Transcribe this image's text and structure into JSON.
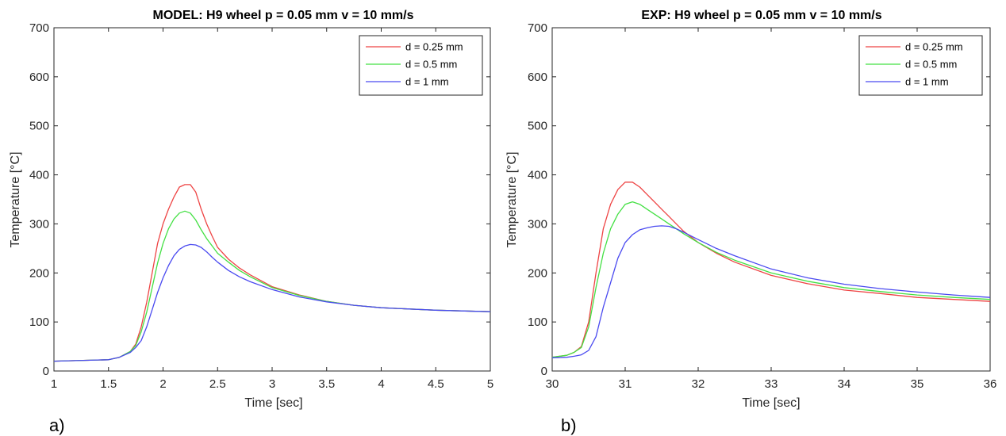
{
  "chart_data": [
    {
      "type": "line",
      "title": "MODEL: H9 wheel p = 0.05 mm v = 10 mm/s",
      "xlabel": "Time [sec]",
      "ylabel": "Temperature [°C]",
      "panel_label": "a)",
      "xlim": [
        1,
        5
      ],
      "ylim": [
        0,
        700
      ],
      "xticks": [
        1,
        1.5,
        2,
        2.5,
        3,
        3.5,
        4,
        4.5,
        5
      ],
      "xticklabels": [
        "1",
        "1.5",
        "2",
        "2.5",
        "3",
        "3.5",
        "4",
        "4.5",
        "5"
      ],
      "yticks": [
        0,
        100,
        200,
        300,
        400,
        500,
        600,
        700
      ],
      "yticklabels": [
        "0",
        "100",
        "200",
        "300",
        "400",
        "500",
        "600",
        "700"
      ],
      "legend_position": "top-right",
      "grid": false,
      "series": [
        {
          "name": "d = 0.25 mm",
          "color": "#ee4444",
          "x": [
            1,
            1.5,
            1.6,
            1.7,
            1.75,
            1.8,
            1.85,
            1.9,
            1.95,
            2,
            2.05,
            2.1,
            2.15,
            2.2,
            2.25,
            2.3,
            2.35,
            2.4,
            2.45,
            2.5,
            2.6,
            2.7,
            2.8,
            3,
            3.25,
            3.5,
            3.75,
            4,
            4.5,
            5
          ],
          "y": [
            20,
            23,
            28,
            40,
            55,
            90,
            140,
            200,
            260,
            300,
            330,
            355,
            375,
            380,
            380,
            365,
            330,
            300,
            275,
            252,
            228,
            210,
            196,
            172,
            155,
            142,
            134,
            129,
            124,
            121
          ]
        },
        {
          "name": "d = 0.5 mm",
          "color": "#44e044",
          "x": [
            1,
            1.5,
            1.6,
            1.7,
            1.75,
            1.8,
            1.85,
            1.9,
            1.95,
            2,
            2.05,
            2.1,
            2.15,
            2.2,
            2.25,
            2.3,
            2.35,
            2.4,
            2.45,
            2.5,
            2.6,
            2.7,
            2.8,
            3,
            3.25,
            3.5,
            3.75,
            4,
            4.5,
            5
          ],
          "y": [
            20,
            23,
            28,
            40,
            52,
            80,
            120,
            170,
            220,
            260,
            290,
            310,
            322,
            326,
            322,
            308,
            288,
            270,
            255,
            240,
            222,
            205,
            192,
            170,
            154,
            142,
            134,
            129,
            124,
            121
          ]
        },
        {
          "name": "d = 1 mm",
          "color": "#4a4af0",
          "x": [
            1,
            1.5,
            1.6,
            1.7,
            1.75,
            1.8,
            1.85,
            1.9,
            1.95,
            2,
            2.05,
            2.1,
            2.15,
            2.2,
            2.25,
            2.3,
            2.35,
            2.4,
            2.45,
            2.5,
            2.6,
            2.7,
            2.8,
            3,
            3.25,
            3.5,
            3.75,
            4,
            4.5,
            5
          ],
          "y": [
            20,
            23,
            28,
            38,
            48,
            62,
            90,
            125,
            160,
            190,
            215,
            235,
            248,
            255,
            258,
            257,
            252,
            243,
            232,
            222,
            205,
            192,
            182,
            166,
            151,
            141,
            134,
            129,
            124,
            121
          ]
        }
      ]
    },
    {
      "type": "line",
      "title": "EXP: H9 wheel p = 0.05 mm v = 10 mm/s",
      "xlabel": "Time [sec]",
      "ylabel": "Temperature [°C]",
      "panel_label": "b)",
      "xlim": [
        30,
        36
      ],
      "ylim": [
        0,
        700
      ],
      "xticks": [
        30,
        31,
        32,
        33,
        34,
        35,
        36
      ],
      "xticklabels": [
        "30",
        "31",
        "32",
        "33",
        "34",
        "35",
        "36"
      ],
      "yticks": [
        0,
        100,
        200,
        300,
        400,
        500,
        600,
        700
      ],
      "yticklabels": [
        "0",
        "100",
        "200",
        "300",
        "400",
        "500",
        "600",
        "700"
      ],
      "legend_position": "top-right",
      "grid": false,
      "series": [
        {
          "name": "d = 0.25 mm",
          "color": "#ee4444",
          "x": [
            30,
            30.2,
            30.3,
            30.4,
            30.5,
            30.6,
            30.7,
            30.8,
            30.9,
            31,
            31.1,
            31.2,
            31.3,
            31.4,
            31.5,
            31.6,
            31.7,
            31.8,
            32,
            32.25,
            32.5,
            33,
            33.5,
            34,
            34.5,
            35,
            35.5,
            36
          ],
          "y": [
            28,
            32,
            38,
            50,
            100,
            200,
            290,
            340,
            370,
            385,
            385,
            375,
            360,
            345,
            330,
            315,
            300,
            285,
            262,
            240,
            222,
            195,
            178,
            165,
            158,
            150,
            146,
            142
          ]
        },
        {
          "name": "d = 0.5 mm",
          "color": "#44e044",
          "x": [
            30,
            30.2,
            30.3,
            30.4,
            30.5,
            30.6,
            30.7,
            30.8,
            30.9,
            31,
            31.1,
            31.2,
            31.3,
            31.4,
            31.5,
            31.6,
            31.7,
            31.8,
            32,
            32.25,
            32.5,
            33,
            33.5,
            34,
            34.5,
            35,
            35.5,
            36
          ],
          "y": [
            28,
            32,
            38,
            48,
            90,
            170,
            240,
            290,
            320,
            340,
            345,
            340,
            330,
            320,
            310,
            300,
            290,
            280,
            262,
            242,
            226,
            200,
            183,
            170,
            162,
            155,
            150,
            146
          ]
        },
        {
          "name": "d = 1 mm",
          "color": "#4a4af0",
          "x": [
            30,
            30.2,
            30.3,
            30.4,
            30.5,
            30.6,
            30.7,
            30.8,
            30.9,
            31,
            31.1,
            31.2,
            31.3,
            31.4,
            31.5,
            31.6,
            31.7,
            31.8,
            32,
            32.25,
            32.5,
            33,
            33.5,
            34,
            34.5,
            35,
            35.5,
            36
          ],
          "y": [
            27,
            28,
            30,
            33,
            42,
            70,
            130,
            180,
            230,
            262,
            278,
            288,
            292,
            295,
            296,
            295,
            290,
            283,
            268,
            250,
            235,
            208,
            190,
            177,
            168,
            161,
            155,
            150
          ]
        }
      ]
    }
  ]
}
